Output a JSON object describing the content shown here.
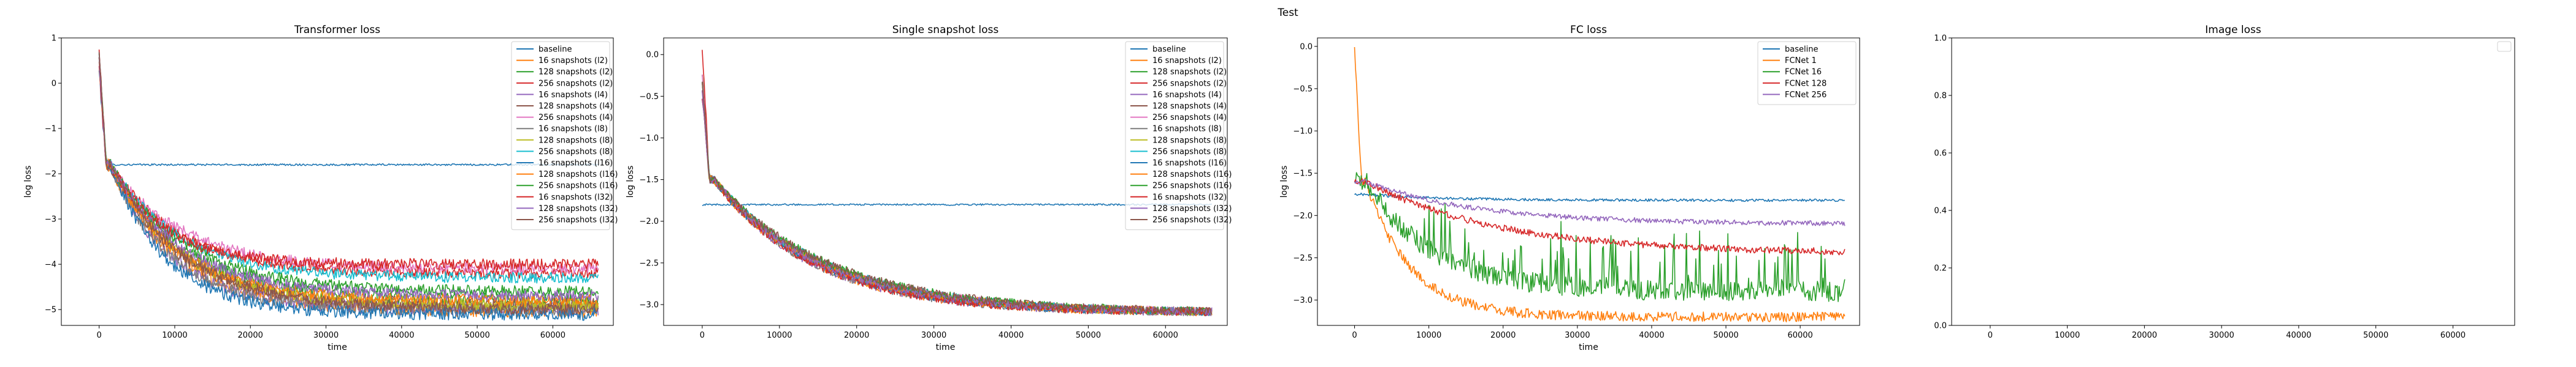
{
  "figure": {
    "suptitle": "Test"
  },
  "chart_data": [
    {
      "type": "line",
      "title": "Transformer loss",
      "xlabel": "time",
      "ylabel": "log loss",
      "xlim": [
        -5000,
        68000
      ],
      "ylim": [
        -5.35,
        1.0
      ],
      "xticks": [
        0,
        10000,
        20000,
        30000,
        40000,
        50000,
        60000
      ],
      "xtick_labels": [
        "0",
        "10000",
        "20000",
        "30000",
        "40000",
        "50000",
        "60000"
      ],
      "yticks": [
        -5,
        -4,
        -3,
        -2,
        -1,
        0,
        1
      ],
      "ytick_labels": [
        "−5",
        "−4",
        "−3",
        "−2",
        "−1",
        "0",
        "1"
      ],
      "legend_position": "upper-right",
      "grid": false,
      "series": [
        {
          "name": "baseline",
          "color": "#1f77b4",
          "start": 0.7,
          "plateau": -1.8,
          "final": -1.8,
          "tau": 1,
          "noise": 0.02
        },
        {
          "name": "16 snapshots (l2)",
          "color": "#ff7f0e",
          "start": 0.5,
          "plateau": -1.8,
          "final": -5.0,
          "tau": 9000,
          "noise": 0.18
        },
        {
          "name": "128 snapshots (l2)",
          "color": "#2ca02c",
          "start": 0.6,
          "plateau": -1.8,
          "final": -4.8,
          "tau": 10000,
          "noise": 0.15
        },
        {
          "name": "256 snapshots (l2)",
          "color": "#d62728",
          "start": 0.7,
          "plateau": -1.8,
          "final": -4.2,
          "tau": 9000,
          "noise": 0.12
        },
        {
          "name": "16 snapshots (l4)",
          "color": "#9467bd",
          "start": 0.4,
          "plateau": -1.8,
          "final": -5.0,
          "tau": 8000,
          "noise": 0.15
        },
        {
          "name": "128 snapshots (l4)",
          "color": "#8c564b",
          "start": 0.5,
          "plateau": -1.8,
          "final": -4.9,
          "tau": 9000,
          "noise": 0.15
        },
        {
          "name": "256 snapshots (l4)",
          "color": "#e377c2",
          "start": 0.6,
          "plateau": -1.8,
          "final": -4.1,
          "tau": 9500,
          "noise": 0.12
        },
        {
          "name": "16 snapshots (l8)",
          "color": "#7f7f7f",
          "start": 0.3,
          "plateau": -1.8,
          "final": -5.0,
          "tau": 8000,
          "noise": 0.14
        },
        {
          "name": "128 snapshots (l8)",
          "color": "#bcbd22",
          "start": 0.5,
          "plateau": -1.8,
          "final": -4.9,
          "tau": 9500,
          "noise": 0.14
        },
        {
          "name": "256 snapshots (l8)",
          "color": "#17becf",
          "start": 0.6,
          "plateau": -1.8,
          "final": -4.3,
          "tau": 9000,
          "noise": 0.12
        },
        {
          "name": "16 snapshots (l16)",
          "color": "#1f77b4",
          "start": 0.2,
          "plateau": -1.8,
          "final": -5.1,
          "tau": 7500,
          "noise": 0.14
        },
        {
          "name": "128 snapshots (l16)",
          "color": "#ff7f0e",
          "start": 0.4,
          "plateau": -1.8,
          "final": -4.8,
          "tau": 9000,
          "noise": 0.13
        },
        {
          "name": "256 snapshots (l16)",
          "color": "#2ca02c",
          "start": 0.5,
          "plateau": -1.8,
          "final": -4.6,
          "tau": 10000,
          "noise": 0.12
        },
        {
          "name": "16 snapshots (l32)",
          "color": "#d62728",
          "start": 0.3,
          "plateau": -1.8,
          "final": -4.0,
          "tau": 7000,
          "noise": 0.12
        },
        {
          "name": "128 snapshots (l32)",
          "color": "#9467bd",
          "start": 0.5,
          "plateau": -1.8,
          "final": -4.7,
          "tau": 9500,
          "noise": 0.12
        },
        {
          "name": "256 snapshots (l32)",
          "color": "#8c564b",
          "start": 0.6,
          "plateau": -1.8,
          "final": -5.0,
          "tau": 10000,
          "noise": 0.12
        }
      ]
    },
    {
      "type": "line",
      "title": "Single snapshot loss",
      "xlabel": "time",
      "ylabel": "log loss",
      "xlim": [
        -5000,
        68000
      ],
      "ylim": [
        -3.25,
        0.2
      ],
      "xticks": [
        0,
        10000,
        20000,
        30000,
        40000,
        50000,
        60000
      ],
      "xtick_labels": [
        "0",
        "10000",
        "20000",
        "30000",
        "40000",
        "50000",
        "60000"
      ],
      "yticks": [
        -3.0,
        -2.5,
        -2.0,
        -1.5,
        -1.0,
        -0.5,
        0.0
      ],
      "ytick_labels": [
        "−3.0",
        "−2.5",
        "−2.0",
        "−1.5",
        "−1.0",
        "−0.5",
        "0.0"
      ],
      "legend_position": "upper-right",
      "grid": false,
      "series": [
        {
          "name": "baseline",
          "color": "#1f77b4",
          "start": -1.8,
          "plateau": -1.8,
          "final": -1.8,
          "tau": 1,
          "noise": 0.01
        },
        {
          "name": "16 snapshots (l2)",
          "color": "#ff7f0e",
          "start": -0.3,
          "plateau": -1.5,
          "final": -3.1,
          "tau": 13000,
          "noise": 0.05
        },
        {
          "name": "128 snapshots (l2)",
          "color": "#2ca02c",
          "start": -0.2,
          "plateau": -1.5,
          "final": -3.1,
          "tau": 14000,
          "noise": 0.05
        },
        {
          "name": "256 snapshots (l2)",
          "color": "#d62728",
          "start": 0.1,
          "plateau": -1.5,
          "final": -3.1,
          "tau": 14000,
          "noise": 0.05
        },
        {
          "name": "16 snapshots (l4)",
          "color": "#9467bd",
          "start": -0.4,
          "plateau": -1.5,
          "final": -3.1,
          "tau": 13000,
          "noise": 0.05
        },
        {
          "name": "128 snapshots (l4)",
          "color": "#8c564b",
          "start": -0.3,
          "plateau": -1.5,
          "final": -3.1,
          "tau": 14000,
          "noise": 0.05
        },
        {
          "name": "256 snapshots (l4)",
          "color": "#e377c2",
          "start": -0.2,
          "plateau": -1.5,
          "final": -3.1,
          "tau": 14500,
          "noise": 0.05
        },
        {
          "name": "16 snapshots (l8)",
          "color": "#7f7f7f",
          "start": -0.5,
          "plateau": -1.5,
          "final": -3.1,
          "tau": 13000,
          "noise": 0.05
        },
        {
          "name": "128 snapshots (l8)",
          "color": "#bcbd22",
          "start": -0.4,
          "plateau": -1.5,
          "final": -3.1,
          "tau": 14000,
          "noise": 0.05
        },
        {
          "name": "256 snapshots (l8)",
          "color": "#17becf",
          "start": -0.3,
          "plateau": -1.5,
          "final": -3.1,
          "tau": 14500,
          "noise": 0.05
        },
        {
          "name": "16 snapshots (l16)",
          "color": "#1f77b4",
          "start": -0.5,
          "plateau": -1.5,
          "final": -3.1,
          "tau": 13500,
          "noise": 0.05
        },
        {
          "name": "128 snapshots (l16)",
          "color": "#ff7f0e",
          "start": -0.4,
          "plateau": -1.5,
          "final": -3.1,
          "tau": 14000,
          "noise": 0.05
        },
        {
          "name": "256 snapshots (l16)",
          "color": "#2ca02c",
          "start": -0.3,
          "plateau": -1.5,
          "final": -3.1,
          "tau": 15000,
          "noise": 0.05
        },
        {
          "name": "16 snapshots (l32)",
          "color": "#d62728",
          "start": -0.5,
          "plateau": -1.5,
          "final": -3.1,
          "tau": 13000,
          "noise": 0.05
        },
        {
          "name": "128 snapshots (l32)",
          "color": "#9467bd",
          "start": -0.4,
          "plateau": -1.5,
          "final": -3.1,
          "tau": 14000,
          "noise": 0.05
        },
        {
          "name": "256 snapshots (l32)",
          "color": "#8c564b",
          "start": -0.3,
          "plateau": -1.5,
          "final": -3.1,
          "tau": 15000,
          "noise": 0.05
        }
      ]
    },
    {
      "type": "line",
      "title": "FC loss",
      "xlabel": "time",
      "ylabel": "log loss",
      "xlim": [
        -5000,
        68000
      ],
      "ylim": [
        -3.3,
        0.1
      ],
      "xticks": [
        0,
        10000,
        20000,
        30000,
        40000,
        50000,
        60000
      ],
      "xtick_labels": [
        "0",
        "10000",
        "20000",
        "30000",
        "40000",
        "50000",
        "60000"
      ],
      "yticks": [
        -3.0,
        -2.5,
        -2.0,
        -1.5,
        -1.0,
        -0.5,
        0.0
      ],
      "ytick_labels": [
        "−3.0",
        "−2.5",
        "−2.0",
        "−1.5",
        "−1.0",
        "−0.5",
        "0.0"
      ],
      "legend_position": "upper-right",
      "grid": false,
      "series": [
        {
          "name": "baseline",
          "color": "#1f77b4",
          "start": -1.75,
          "plateau": -1.75,
          "final": -1.82,
          "tau": 10000,
          "noise": 0.015
        },
        {
          "name": "FCNet 1",
          "color": "#ff7f0e",
          "start": 0.0,
          "plateau": -1.6,
          "final": -3.2,
          "tau": 6000,
          "noise": 0.06
        },
        {
          "name": "FCNet 16",
          "color": "#2ca02c",
          "start": -1.6,
          "plateau": -1.6,
          "final": -2.9,
          "tau": 9000,
          "noise": 0.12,
          "spiky": true
        },
        {
          "name": "FCNet 128",
          "color": "#d62728",
          "start": -1.6,
          "plateau": -1.6,
          "final": -2.45,
          "tau": 18000,
          "noise": 0.04
        },
        {
          "name": "FCNet 256",
          "color": "#9467bd",
          "start": -1.6,
          "plateau": -1.6,
          "final": -2.1,
          "tau": 15000,
          "noise": 0.03
        }
      ]
    },
    {
      "type": "line",
      "title": "Image loss",
      "xlabel": "",
      "ylabel": "",
      "xlim": [
        -5000,
        68000
      ],
      "ylim": [
        0.0,
        1.0
      ],
      "xticks": [
        0,
        10000,
        20000,
        30000,
        40000,
        50000,
        60000
      ],
      "xtick_labels": [
        "0",
        "10000",
        "20000",
        "30000",
        "40000",
        "50000",
        "60000"
      ],
      "yticks": [
        0.0,
        0.2,
        0.4,
        0.6,
        0.8,
        1.0
      ],
      "ytick_labels": [
        "0.0",
        "0.2",
        "0.4",
        "0.6",
        "0.8",
        "1.0"
      ],
      "legend_position": "upper-right",
      "grid": false,
      "series": []
    }
  ]
}
